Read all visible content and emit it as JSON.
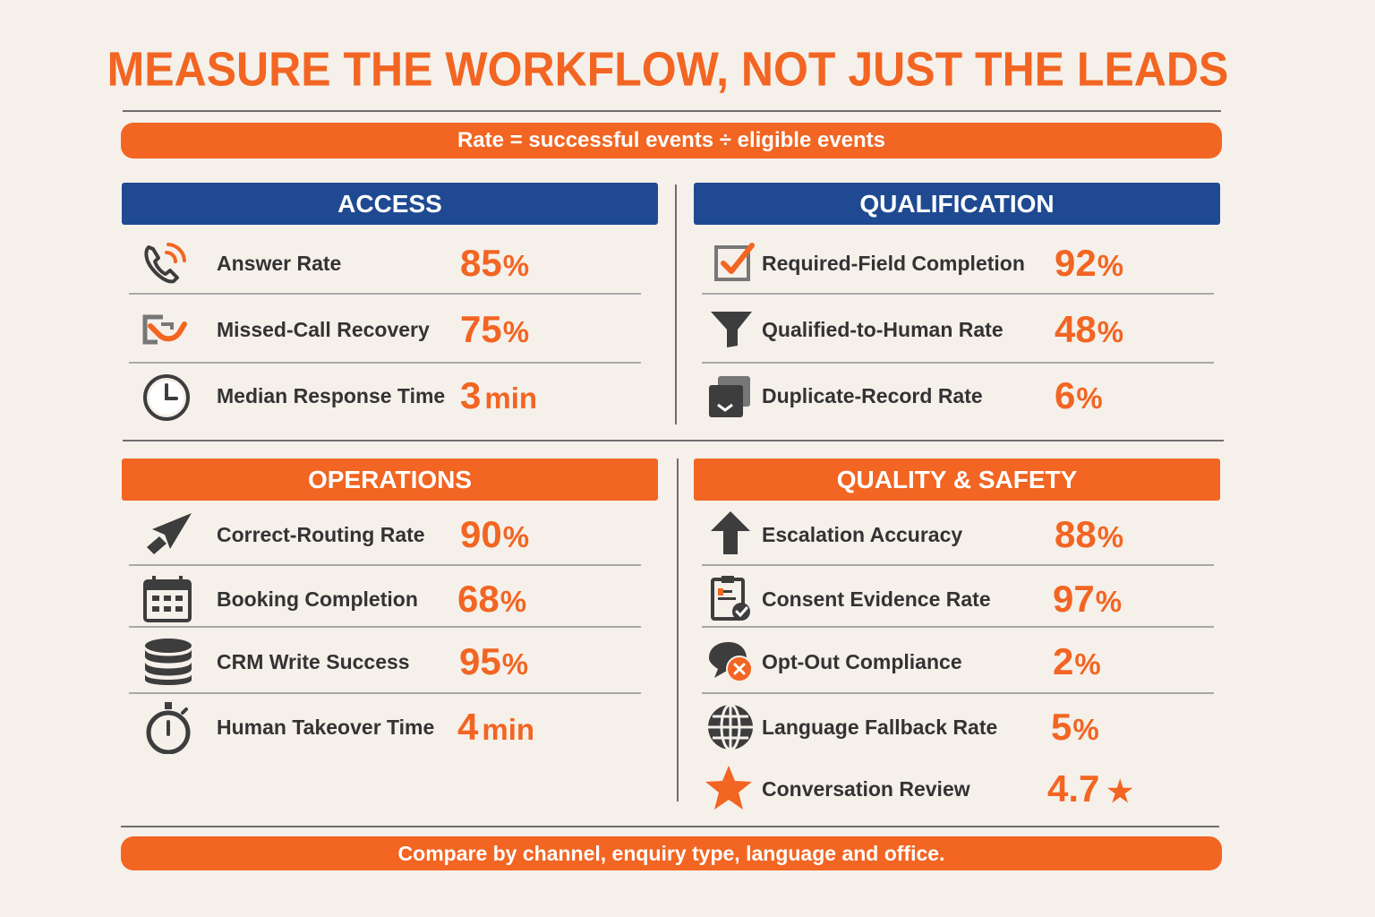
{
  "title": "MEASURE THE WORKFLOW, NOT JUST THE LEADS",
  "formula": "Rate = successful events ÷ eligible events",
  "footer": "Compare by channel, enquiry type, language and office.",
  "colors": {
    "orange": "#f26522",
    "blue": "#1f4a92",
    "background": "#f5f0ea",
    "icon": "#3d3d3d"
  },
  "sections": {
    "access": {
      "title": "ACCESS",
      "rows": [
        {
          "icon": "phone-ringing-icon",
          "label": "Answer Rate",
          "num": "85",
          "unit": "%"
        },
        {
          "icon": "missed-call-recovery-icon",
          "label": "Missed-Call Recovery",
          "num": "75",
          "unit": "%"
        },
        {
          "icon": "clock-icon",
          "label": "Median Response Time",
          "num": "3",
          "unit": "min"
        }
      ]
    },
    "qualification": {
      "title": "QUALIFICATION",
      "rows": [
        {
          "icon": "checkbox-icon",
          "label": "Required-Field Completion",
          "num": "92",
          "unit": "%"
        },
        {
          "icon": "funnel-icon",
          "label": "Qualified-to-Human Rate",
          "num": "48",
          "unit": "%"
        },
        {
          "icon": "duplicate-icon",
          "label": "Duplicate-Record Rate",
          "num": "6",
          "unit": "%"
        }
      ]
    },
    "operations": {
      "title": "OPERATIONS",
      "rows": [
        {
          "icon": "routing-arrow-icon",
          "label": "Correct-Routing Rate",
          "num": "90",
          "unit": "%"
        },
        {
          "icon": "calendar-icon",
          "label": "Booking Completion",
          "num": "68",
          "unit": "%"
        },
        {
          "icon": "database-icon",
          "label": "CRM Write Success",
          "num": "95",
          "unit": "%"
        },
        {
          "icon": "stopwatch-icon",
          "label": "Human Takeover Time",
          "num": "4",
          "unit": "min"
        }
      ]
    },
    "quality": {
      "title": "QUALITY & SAFETY",
      "rows": [
        {
          "icon": "escalation-arrow-icon",
          "label": "Escalation Accuracy",
          "num": "88",
          "unit": "%"
        },
        {
          "icon": "consent-clipboard-icon",
          "label": "Consent Evidence Rate",
          "num": "97",
          "unit": "%"
        },
        {
          "icon": "opt-out-chat-icon",
          "label": "Opt-Out Compliance",
          "num": "2",
          "unit": "%"
        },
        {
          "icon": "globe-icon",
          "label": "Language Fallback Rate",
          "num": "5",
          "unit": "%"
        },
        {
          "icon": "star-icon",
          "label": "Conversation Review",
          "num": "4.7",
          "unit": "★"
        }
      ]
    }
  }
}
